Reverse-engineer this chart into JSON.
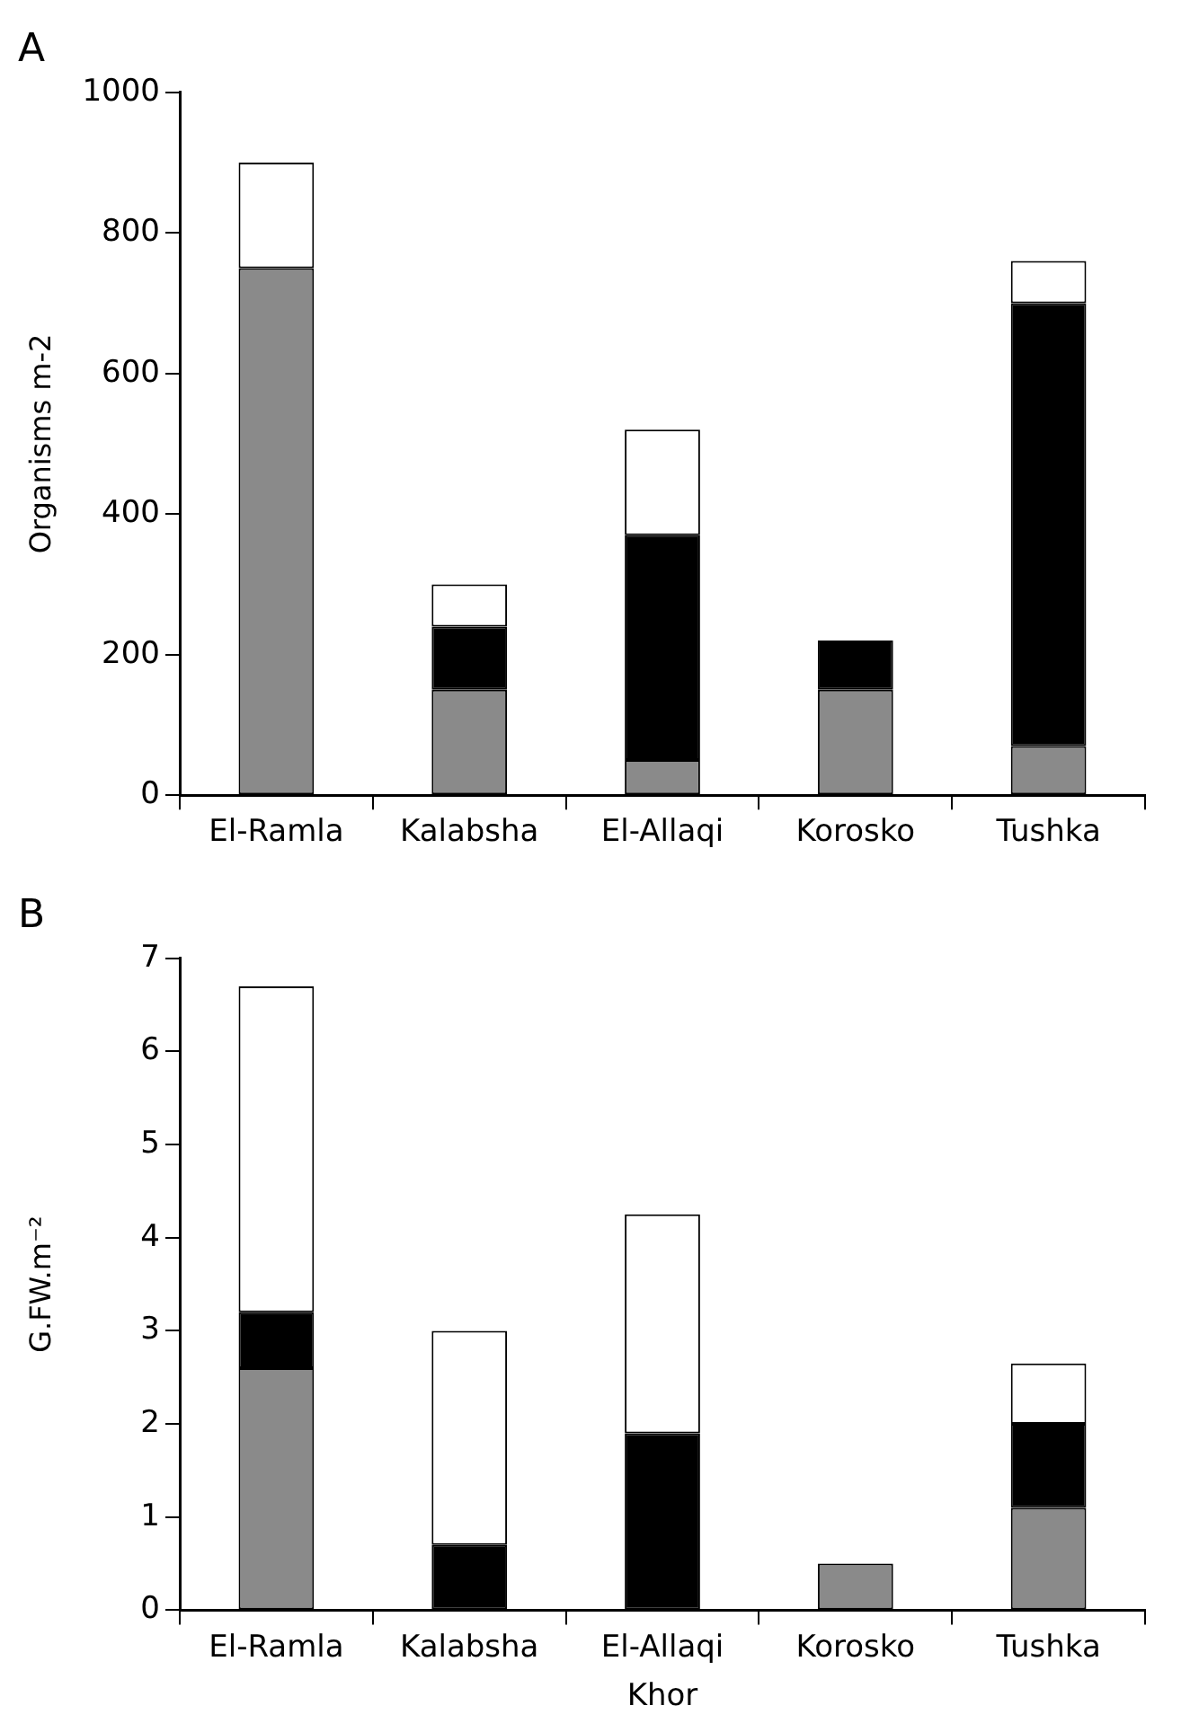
{
  "chart_data": [
    {
      "type": "bar",
      "title": "A",
      "ylabel": "Organisms m-2",
      "categories": [
        "El-Ramla",
        "Kalabsha",
        "El-Allaqi",
        "Korosko",
        "Tushka"
      ],
      "stacked": true,
      "ylim": [
        0,
        1000
      ],
      "yticks": [
        0,
        200,
        400,
        600,
        800,
        1000
      ],
      "grid": false,
      "legend": false,
      "series": [
        {
          "color": "#8a8a8a",
          "values": [
            750,
            150,
            50,
            150,
            70
          ]
        },
        {
          "color": "#000000",
          "values": [
            0,
            90,
            320,
            70,
            630
          ]
        },
        {
          "color": "#ffffff",
          "values": [
            150,
            60,
            150,
            0,
            60
          ]
        }
      ]
    },
    {
      "type": "bar",
      "title": "B",
      "xlabel": "Khor",
      "ylabel": "G.FW.m⁻²",
      "categories": [
        "El-Ramla",
        "Kalabsha",
        "El-Allaqi",
        "Korosko",
        "Tushka"
      ],
      "stacked": true,
      "ylim": [
        0,
        7
      ],
      "yticks": [
        0,
        1,
        2,
        3,
        4,
        5,
        6,
        7
      ],
      "grid": false,
      "legend": false,
      "series": [
        {
          "color": "#8a8a8a",
          "values": [
            2.6,
            0,
            0,
            0.5,
            1.1
          ]
        },
        {
          "color": "#000000",
          "values": [
            0.6,
            0.7,
            1.9,
            0,
            0.9
          ]
        },
        {
          "color": "#ffffff",
          "values": [
            3.5,
            2.3,
            2.35,
            0,
            0.65
          ]
        }
      ]
    }
  ]
}
